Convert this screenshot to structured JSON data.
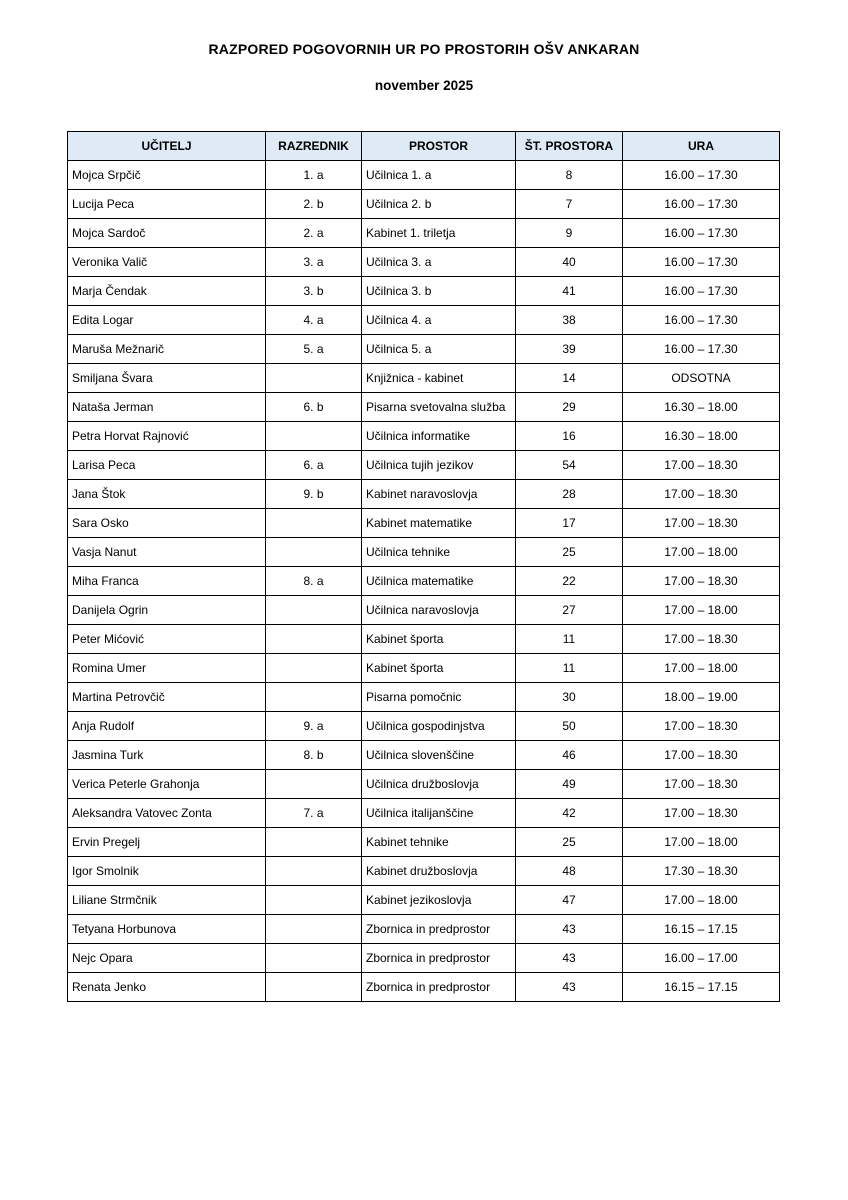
{
  "page": {
    "title": "RAZPORED POGOVORNIH UR PO PROSTORIH OŠV ANKARAN",
    "subtitle": "november 2025"
  },
  "colors": {
    "header_bg": "#DEEAF6",
    "border": "#000000",
    "text": "#000000"
  },
  "table": {
    "columns": [
      "UČITELJ",
      "RAZREDNIK",
      "PROSTOR",
      "ŠT. PROSTORA",
      "URA"
    ],
    "column_alignments": [
      "left",
      "center",
      "left",
      "center",
      "center"
    ],
    "rows": [
      [
        "Mojca Srpčič",
        "1. a",
        "Učilnica 1. a",
        "8",
        "16.00 – 17.30"
      ],
      [
        "Lucija Peca",
        "2. b",
        "Učilnica 2. b",
        "7",
        "16.00 – 17.30"
      ],
      [
        "Mojca Sardoč",
        "2. a",
        "Kabinet 1. triletja",
        "9",
        "16.00 – 17.30"
      ],
      [
        "Veronika Valič",
        "3. a",
        "Učilnica 3. a",
        "40",
        "16.00 – 17.30"
      ],
      [
        "Marja Čendak",
        "3. b",
        "Učilnica 3. b",
        "41",
        "16.00 – 17.30"
      ],
      [
        "Edita Logar",
        "4. a",
        "Učilnica 4. a",
        "38",
        "16.00 – 17.30"
      ],
      [
        "Maruša Mežnarič",
        "5. a",
        "Učilnica 5. a",
        "39",
        "16.00 – 17.30"
      ],
      [
        "Smiljana Švara",
        "",
        "Knjižnica - kabinet",
        "14",
        "ODSOTNA"
      ],
      [
        "Nataša Jerman",
        "6. b",
        "Pisarna svetovalna služba",
        "29",
        "16.30 – 18.00"
      ],
      [
        "Petra Horvat Rajnović",
        "",
        "Učilnica informatike",
        "16",
        "16.30 – 18.00"
      ],
      [
        "Larisa Peca",
        "6. a",
        "Učilnica tujih jezikov",
        "54",
        "17.00 – 18.30"
      ],
      [
        "Jana Štok",
        "9. b",
        "Kabinet naravoslovja",
        "28",
        "17.00 – 18.30"
      ],
      [
        "Sara Osko",
        "",
        "Kabinet matematike",
        "17",
        "17.00 – 18.30"
      ],
      [
        "Vasja Nanut",
        "",
        "Učilnica tehnike",
        "25",
        "17.00 – 18.00"
      ],
      [
        "Miha Franca",
        "8. a",
        "Učilnica matematike",
        "22",
        "17.00 – 18.30"
      ],
      [
        "Danijela Ogrin",
        "",
        "Učilnica naravoslovja",
        "27",
        "17.00 – 18.00"
      ],
      [
        "Peter Mićović",
        "",
        "Kabinet športa",
        "11",
        "17.00 – 18.30"
      ],
      [
        "Romina Umer",
        "",
        "Kabinet športa",
        "11",
        "17.00 – 18.00"
      ],
      [
        "Martina Petrovčič",
        "",
        "Pisarna pomočnic",
        "30",
        "18.00 – 19.00"
      ],
      [
        "Anja Rudolf",
        "9. a",
        "Učilnica gospodinjstva",
        "50",
        "17.00 – 18.30"
      ],
      [
        "Jasmina Turk",
        "8. b",
        "Učilnica slovenščine",
        "46",
        "17.00 – 18.30"
      ],
      [
        "Verica Peterle Grahonja",
        "",
        "Učilnica družboslovja",
        "49",
        "17.00 – 18.30"
      ],
      [
        "Aleksandra Vatovec Zonta",
        "7. a",
        "Učilnica italijanščine",
        "42",
        "17.00 – 18.30"
      ],
      [
        "Ervin Pregelj",
        "",
        "Kabinet tehnike",
        "25",
        "17.00 – 18.00"
      ],
      [
        "Igor Smolnik",
        "",
        "Kabinet družboslovja",
        "48",
        "17.30 – 18.30"
      ],
      [
        "Liliane Strmčnik",
        "",
        "Kabinet jezikoslovja",
        "47",
        "17.00 – 18.00"
      ],
      [
        "Tetyana Horbunova",
        "",
        "Zbornica in predprostor",
        "43",
        "16.15 – 17.15"
      ],
      [
        "Nejc Opara",
        "",
        "Zbornica in predprostor",
        "43",
        "16.00 – 17.00"
      ],
      [
        "Renata Jenko",
        "",
        "Zbornica in predprostor",
        "43",
        "16.15 – 17.15"
      ]
    ]
  }
}
